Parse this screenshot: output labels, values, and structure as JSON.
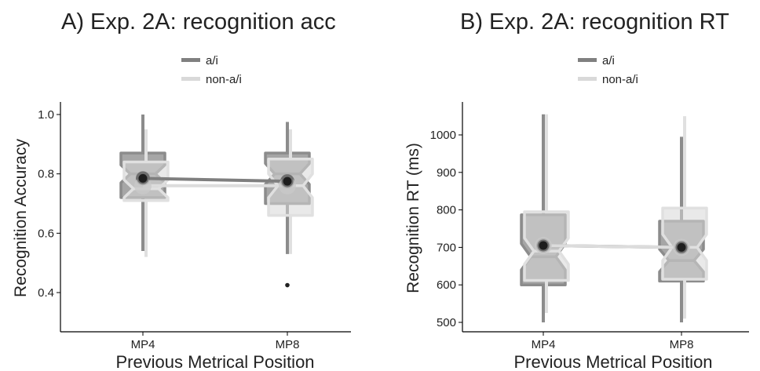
{
  "chart_data": [
    {
      "type": "boxplot",
      "title": "A) Exp. 2A: recognition acc",
      "xlabel": "Previous Metrical Position",
      "ylabel": "Recognition Accuracy",
      "categories": [
        "MP4",
        "MP8"
      ],
      "ylim": [
        0.35,
        1.03
      ],
      "yticks": [
        0.4,
        0.6,
        0.8,
        1.0
      ],
      "ytick_labels": [
        "0.4",
        "0.6",
        "0.8",
        "1.0"
      ],
      "grid": false,
      "legend_position": "top",
      "series": [
        {
          "name": "a/i",
          "color": "#808080",
          "boxes": [
            {
              "category": "MP4",
              "whisker_low": 0.54,
              "q1": 0.72,
              "median": 0.8,
              "q3": 0.87,
              "whisker_high": 1.0,
              "notch_low": 0.77,
              "notch_high": 0.83,
              "outliers": []
            },
            {
              "category": "MP8",
              "whisker_low": 0.53,
              "q1": 0.7,
              "median": 0.8,
              "q3": 0.87,
              "whisker_high": 0.975,
              "notch_low": 0.765,
              "notch_high": 0.835,
              "outliers": [
                0.425
              ]
            }
          ],
          "means": [
            0.785,
            0.775
          ]
        },
        {
          "name": "non-a/i",
          "color": "#d9d9d9",
          "boxes": [
            {
              "category": "MP4",
              "whisker_low": 0.52,
              "q1": 0.71,
              "median": 0.75,
              "q3": 0.84,
              "whisker_high": 0.95,
              "notch_low": 0.72,
              "notch_high": 0.78,
              "outliers": []
            },
            {
              "category": "MP8",
              "whisker_low": 0.53,
              "q1": 0.66,
              "median": 0.76,
              "q3": 0.85,
              "whisker_high": 0.95,
              "notch_low": 0.72,
              "notch_high": 0.8,
              "outliers": []
            }
          ],
          "means": [
            0.76,
            0.76
          ]
        }
      ]
    },
    {
      "type": "boxplot",
      "title": "B) Exp. 2A: recognition RT",
      "xlabel": "Previous Metrical Position",
      "ylabel": "Recognition RT (ms)",
      "categories": [
        "MP4",
        "MP8"
      ],
      "ylim": [
        480,
        1070
      ],
      "yticks": [
        500,
        600,
        700,
        800,
        900,
        1000
      ],
      "ytick_labels": [
        "500",
        "600",
        "700",
        "800",
        "900",
        "1000"
      ],
      "grid": false,
      "legend_position": "top",
      "series": [
        {
          "name": "a/i",
          "color": "#808080",
          "boxes": [
            {
              "category": "MP4",
              "whisker_low": 500,
              "q1": 600,
              "median": 675,
              "q3": 787,
              "whisker_high": 1055,
              "notch_low": 640,
              "notch_high": 710,
              "outliers": []
            },
            {
              "category": "MP8",
              "whisker_low": 500,
              "q1": 610,
              "median": 665,
              "q3": 770,
              "whisker_high": 995,
              "notch_low": 635,
              "notch_high": 695,
              "outliers": []
            }
          ],
          "means": [
            705,
            700
          ]
        },
        {
          "name": "non-a/i",
          "color": "#d9d9d9",
          "boxes": [
            {
              "category": "MP4",
              "whisker_low": 525,
              "q1": 612,
              "median": 690,
              "q3": 795,
              "whisker_high": 1055,
              "notch_low": 655,
              "notch_high": 725,
              "outliers": []
            },
            {
              "category": "MP8",
              "whisker_low": 510,
              "q1": 615,
              "median": 700,
              "q3": 805,
              "whisker_high": 1050,
              "notch_low": 665,
              "notch_high": 735,
              "outliers": []
            }
          ],
          "means": [
            705,
            700
          ]
        }
      ]
    }
  ]
}
